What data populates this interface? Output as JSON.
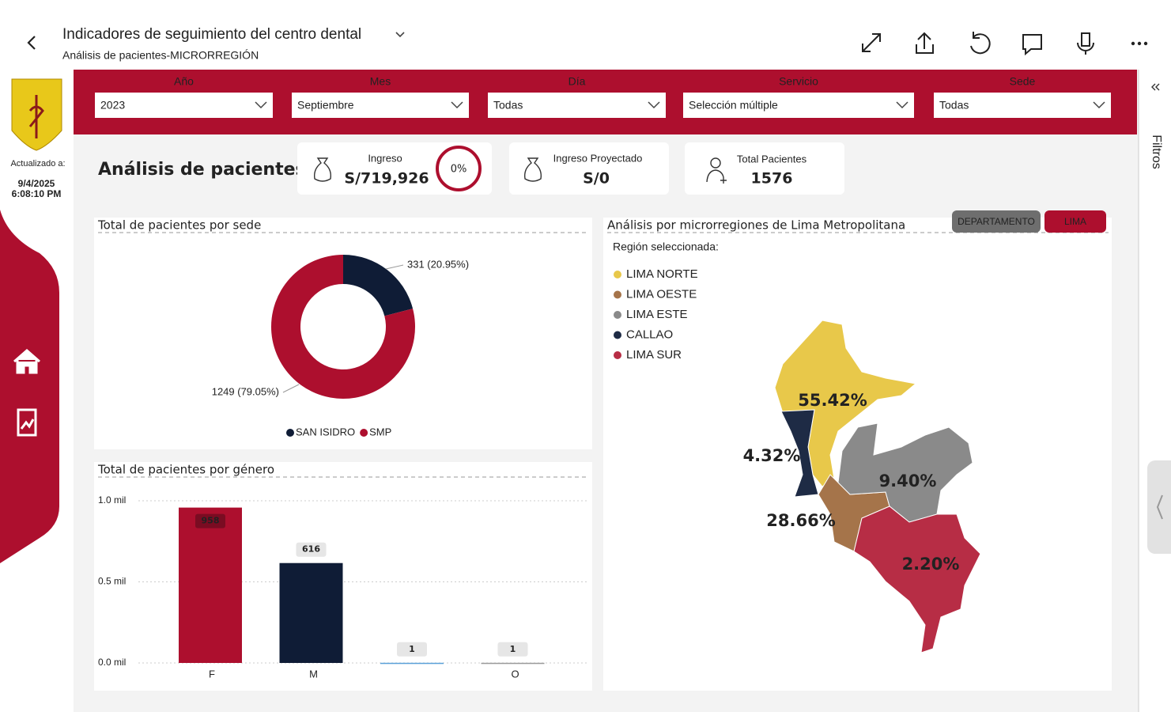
{
  "header": {
    "title": "Indicadores de seguimiento del centro dental",
    "subtitle": "Análisis de pacientes-MICRORREGIÓN"
  },
  "sidebar": {
    "updated_label": "Actualizado a:",
    "date": "9/4/2025",
    "time": "6:08:10 PM"
  },
  "filters": [
    {
      "label": "Año",
      "value": "2023"
    },
    {
      "label": "Mes",
      "value": "Septiembre"
    },
    {
      "label": "Día",
      "value": "Todas"
    },
    {
      "label": "Servicio",
      "value": "Selección múltiple"
    },
    {
      "label": "Sede",
      "value": "Todas"
    }
  ],
  "page_title": "Análisis de pacientes",
  "kpis": [
    {
      "label": "Ingreso",
      "value": "S/719,926",
      "gauge": "0%"
    },
    {
      "label": "Ingreso Proyectado",
      "value": "S/0"
    },
    {
      "label": "Total Pacientes",
      "value": "1576"
    }
  ],
  "filter_pane": "Filtros",
  "chart_data": [
    {
      "type": "donut",
      "title": "Total de pacientes por sede",
      "categories": [
        "SAN ISIDRO",
        "SMP"
      ],
      "values": [
        331,
        1249
      ],
      "value_labels": [
        "331 (20.95%)",
        "1249 (79.05%)"
      ],
      "colors": [
        "#0f1c36",
        "#ad0f2e"
      ],
      "legend": "bottom"
    },
    {
      "type": "bar",
      "title": "Total de pacientes por género",
      "categories": [
        "F",
        "M",
        null,
        "O"
      ],
      "values": [
        958,
        616,
        1,
        1
      ],
      "colors": [
        "#ad0f2e",
        "#0f1c36",
        "#5aa0d8",
        "#9a9a9a"
      ],
      "ylim": [
        0,
        1000
      ],
      "yticks": [
        {
          "value": 0,
          "label": "0.0 mil"
        },
        {
          "value": 500,
          "label": "0.5 mil"
        },
        {
          "value": 1000,
          "label": "1.0 mil"
        }
      ],
      "grid": true
    },
    {
      "type": "map",
      "title": "Análisis por microrregiones de Lima Metropolitana",
      "buttons": [
        "DEPARTAMENTO",
        "LIMA"
      ],
      "selection_label": "Región seleccionada:",
      "categories": [
        "LIMA NORTE",
        "LIMA OESTE",
        "LIMA ESTE",
        "CALLAO",
        "LIMA SUR"
      ],
      "colors": [
        "#e8c84a",
        "#a5744a",
        "#8a8a8a",
        "#1e2b45",
        "#b72d45"
      ],
      "values": [
        55.42,
        28.66,
        9.4,
        4.32,
        2.2
      ],
      "value_labels": [
        "55.42%",
        "28.66%",
        "9.40%",
        "4.32%",
        "2.20%"
      ]
    }
  ]
}
